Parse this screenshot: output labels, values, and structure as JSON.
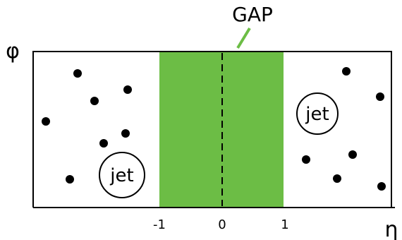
{
  "labels": {
    "gap": "GAP",
    "y_axis": "φ",
    "x_axis": "η",
    "jet_left": "jet",
    "jet_right": "jet"
  },
  "ticks": [
    "-1",
    "0",
    "1"
  ],
  "colors": {
    "gap_fill": "#6cbd45",
    "gap_pointer": "#6cbd45",
    "particle": "#000000",
    "frame": "#000000",
    "background": "#ffffff"
  },
  "regions": {
    "gap_eta_range": [
      -1,
      1
    ]
  }
}
